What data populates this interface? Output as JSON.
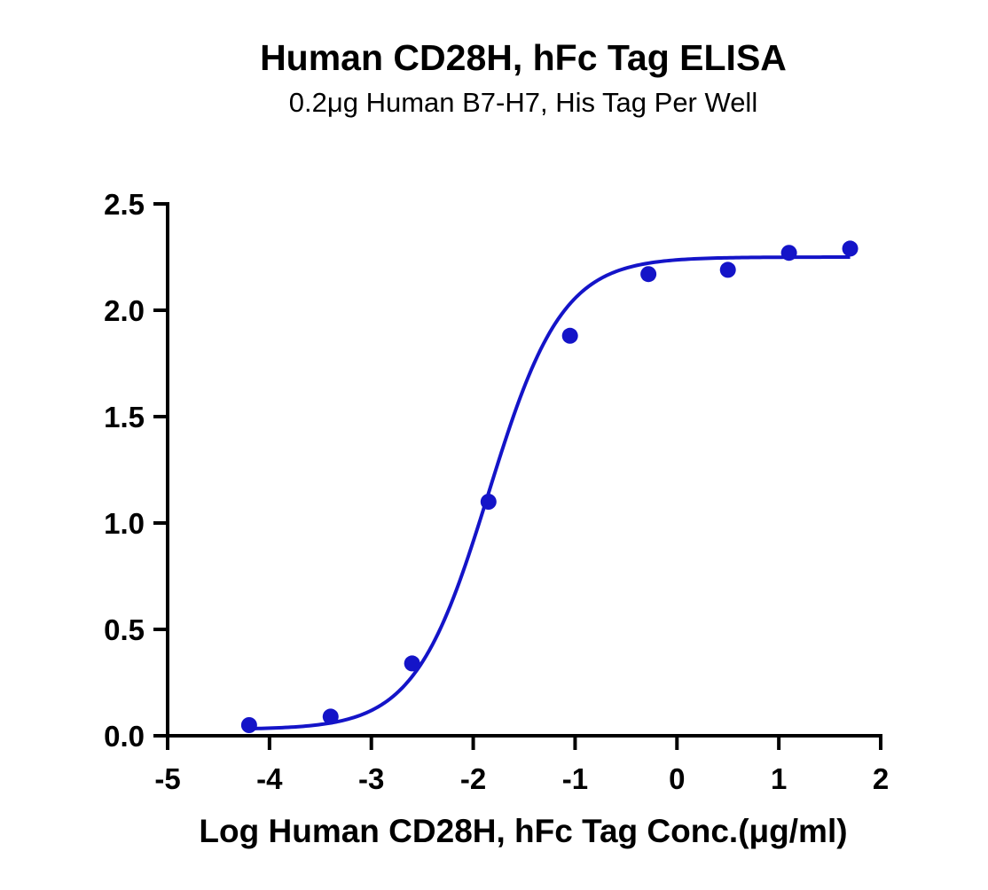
{
  "chart_data": {
    "type": "scatter",
    "title": "Human CD28H, hFc Tag ELISA",
    "subtitle": "0.2μg Human B7-H7, His Tag Per Well",
    "xlabel": "Log Human CD28H, hFc Tag Conc.(μg/ml)",
    "ylabel": "",
    "xlim": [
      -5,
      2
    ],
    "ylim": [
      0,
      2.5
    ],
    "x_ticks": [
      "-5",
      "-4",
      "-3",
      "-2",
      "-1",
      "0",
      "1",
      "2"
    ],
    "y_ticks": [
      "0.0",
      "0.5",
      "1.0",
      "1.5",
      "2.0",
      "2.5"
    ],
    "grid": false,
    "series": [
      {
        "points": [
          {
            "x": -4.2,
            "y": 0.05
          },
          {
            "x": -3.4,
            "y": 0.09
          },
          {
            "x": -2.6,
            "y": 0.34
          },
          {
            "x": -1.85,
            "y": 1.1
          },
          {
            "x": -1.05,
            "y": 1.88
          },
          {
            "x": -0.28,
            "y": 2.17
          },
          {
            "x": 0.5,
            "y": 2.19
          },
          {
            "x": 1.1,
            "y": 2.27
          },
          {
            "x": 1.7,
            "y": 2.29
          }
        ],
        "fit": {
          "model": "4PL",
          "bottom": 0.03,
          "top": 2.25,
          "logEC50": -1.85,
          "hill": 1.2,
          "x_range": [
            -4.2,
            1.7
          ]
        }
      }
    ],
    "colors": {
      "series": "#1414c8",
      "axis": "#000000"
    }
  }
}
